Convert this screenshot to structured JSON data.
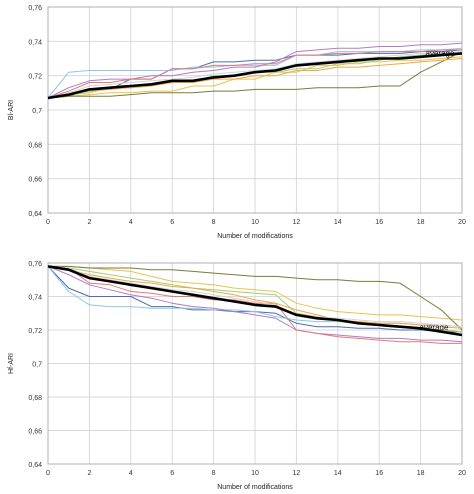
{
  "chart_data": [
    {
      "type": "line",
      "xlabel": "Number of modifications",
      "ylabel": "Bl-ARI",
      "xlim": [
        0,
        20
      ],
      "ylim": [
        0.64,
        0.76
      ],
      "x_ticks": [
        "0",
        "2",
        "4",
        "6",
        "8",
        "10",
        "12",
        "14",
        "16",
        "18",
        "20"
      ],
      "y_ticks": [
        "0,64",
        "0,66",
        "0,68",
        "0,7",
        "0,72",
        "0,74",
        "0,76"
      ],
      "grid": true,
      "x": [
        0,
        1,
        2,
        3,
        4,
        5,
        6,
        7,
        8,
        9,
        10,
        11,
        12,
        13,
        14,
        15,
        16,
        17,
        18,
        19,
        20
      ],
      "average_label": "average",
      "average": [
        0.707,
        0.709,
        0.712,
        0.713,
        0.714,
        0.715,
        0.717,
        0.717,
        0.719,
        0.72,
        0.722,
        0.723,
        0.726,
        0.727,
        0.728,
        0.729,
        0.73,
        0.73,
        0.731,
        0.732,
        0.733
      ],
      "series": [
        {
          "color": "#4a6fb0",
          "values": [
            0.707,
            0.708,
            0.712,
            0.712,
            0.718,
            0.718,
            0.724,
            0.724,
            0.728,
            0.728,
            0.729,
            0.729,
            0.732,
            0.732,
            0.732,
            0.733,
            0.733,
            0.733,
            0.734,
            0.734,
            0.735
          ]
        },
        {
          "color": "#8ec7e8",
          "values": [
            0.707,
            0.722,
            0.723,
            0.723,
            0.723,
            0.723,
            0.723,
            0.725,
            0.725,
            0.726,
            0.726,
            0.726,
            0.732,
            0.732,
            0.734,
            0.734,
            0.734,
            0.734,
            0.735,
            0.735,
            0.736
          ]
        },
        {
          "color": "#e8c44a",
          "values": [
            0.707,
            0.708,
            0.709,
            0.71,
            0.71,
            0.711,
            0.711,
            0.714,
            0.714,
            0.718,
            0.718,
            0.722,
            0.722,
            0.726,
            0.726,
            0.728,
            0.728,
            0.729,
            0.729,
            0.73,
            0.731
          ]
        },
        {
          "color": "#b07cc0",
          "values": [
            0.707,
            0.713,
            0.717,
            0.718,
            0.718,
            0.72,
            0.72,
            0.722,
            0.723,
            0.725,
            0.725,
            0.728,
            0.734,
            0.735,
            0.736,
            0.736,
            0.737,
            0.737,
            0.738,
            0.738,
            0.739
          ]
        },
        {
          "color": "#e07a7a",
          "values": [
            0.707,
            0.711,
            0.716,
            0.716,
            0.718,
            0.718,
            0.724,
            0.724,
            0.726,
            0.726,
            0.727,
            0.727,
            0.732,
            0.732,
            0.733,
            0.733,
            0.734,
            0.734,
            0.734,
            0.735,
            0.735
          ]
        },
        {
          "color": "#7a7a3a",
          "values": [
            0.707,
            0.708,
            0.708,
            0.708,
            0.709,
            0.71,
            0.71,
            0.71,
            0.711,
            0.711,
            0.712,
            0.712,
            0.712,
            0.713,
            0.713,
            0.713,
            0.714,
            0.714,
            0.722,
            0.728,
            0.734
          ]
        },
        {
          "color": "#9ad27a",
          "values": [
            0.707,
            0.709,
            0.71,
            0.713,
            0.713,
            0.715,
            0.716,
            0.716,
            0.72,
            0.72,
            0.722,
            0.722,
            0.724,
            0.724,
            0.727,
            0.727,
            0.729,
            0.731,
            0.732,
            0.733,
            0.734
          ]
        },
        {
          "color": "#f3a640",
          "values": [
            0.707,
            0.709,
            0.711,
            0.712,
            0.713,
            0.714,
            0.716,
            0.716,
            0.718,
            0.718,
            0.72,
            0.72,
            0.723,
            0.723,
            0.725,
            0.725,
            0.726,
            0.727,
            0.728,
            0.729,
            0.73
          ]
        },
        {
          "color": "#d4d4d4",
          "values": [
            0.707,
            0.71,
            0.714,
            0.715,
            0.716,
            0.717,
            0.718,
            0.719,
            0.721,
            0.722,
            0.723,
            0.724,
            0.727,
            0.728,
            0.729,
            0.73,
            0.731,
            0.732,
            0.733,
            0.733,
            0.734
          ]
        }
      ]
    },
    {
      "type": "line",
      "xlabel": "Number of modifications",
      "ylabel": "Hf-ARI",
      "xlim": [
        0,
        20
      ],
      "ylim": [
        0.64,
        0.76
      ],
      "x_ticks": [
        "0",
        "2",
        "4",
        "6",
        "8",
        "10",
        "12",
        "14",
        "16",
        "18",
        "20"
      ],
      "y_ticks": [
        "0,64",
        "0,66",
        "0,68",
        "0,7",
        "0,72",
        "0,74",
        "0,76"
      ],
      "grid": true,
      "x": [
        0,
        1,
        2,
        3,
        4,
        5,
        6,
        7,
        8,
        9,
        10,
        11,
        12,
        13,
        14,
        15,
        16,
        17,
        18,
        19,
        20
      ],
      "average_label": "average",
      "average": [
        0.758,
        0.756,
        0.751,
        0.749,
        0.747,
        0.745,
        0.743,
        0.741,
        0.739,
        0.737,
        0.735,
        0.734,
        0.729,
        0.727,
        0.726,
        0.724,
        0.723,
        0.722,
        0.721,
        0.719,
        0.717
      ],
      "series": [
        {
          "color": "#4a6fb0",
          "values": [
            0.758,
            0.745,
            0.74,
            0.74,
            0.74,
            0.734,
            0.734,
            0.732,
            0.732,
            0.731,
            0.731,
            0.73,
            0.724,
            0.722,
            0.722,
            0.721,
            0.721,
            0.72,
            0.72,
            0.719,
            0.719
          ]
        },
        {
          "color": "#8ec7e8",
          "values": [
            0.758,
            0.743,
            0.735,
            0.734,
            0.734,
            0.733,
            0.733,
            0.733,
            0.732,
            0.732,
            0.731,
            0.728,
            0.726,
            0.725,
            0.725,
            0.725,
            0.724,
            0.724,
            0.723,
            0.723,
            0.722
          ]
        },
        {
          "color": "#e8c44a",
          "values": [
            0.758,
            0.758,
            0.757,
            0.756,
            0.755,
            0.752,
            0.749,
            0.748,
            0.747,
            0.745,
            0.744,
            0.743,
            0.736,
            0.733,
            0.731,
            0.73,
            0.729,
            0.729,
            0.728,
            0.727,
            0.726
          ]
        },
        {
          "color": "#b07cc0",
          "values": [
            0.758,
            0.753,
            0.747,
            0.744,
            0.741,
            0.739,
            0.736,
            0.734,
            0.733,
            0.731,
            0.729,
            0.727,
            0.72,
            0.718,
            0.717,
            0.716,
            0.715,
            0.715,
            0.714,
            0.714,
            0.713
          ]
        },
        {
          "color": "#e07a7a",
          "values": [
            0.758,
            0.757,
            0.748,
            0.747,
            0.743,
            0.742,
            0.74,
            0.74,
            0.738,
            0.738,
            0.736,
            0.736,
            0.72,
            0.718,
            0.716,
            0.715,
            0.714,
            0.713,
            0.713,
            0.712,
            0.712
          ]
        },
        {
          "color": "#7a7a3a",
          "values": [
            0.758,
            0.758,
            0.757,
            0.757,
            0.757,
            0.756,
            0.756,
            0.755,
            0.754,
            0.753,
            0.752,
            0.752,
            0.751,
            0.75,
            0.75,
            0.749,
            0.749,
            0.748,
            0.74,
            0.732,
            0.72
          ]
        },
        {
          "color": "#9ad27a",
          "values": [
            0.758,
            0.757,
            0.755,
            0.753,
            0.751,
            0.749,
            0.747,
            0.745,
            0.744,
            0.743,
            0.742,
            0.741,
            0.73,
            0.728,
            0.725,
            0.724,
            0.723,
            0.722,
            0.721,
            0.72,
            0.719
          ]
        },
        {
          "color": "#f3a640",
          "values": [
            0.758,
            0.756,
            0.753,
            0.751,
            0.749,
            0.748,
            0.746,
            0.745,
            0.743,
            0.741,
            0.738,
            0.736,
            0.732,
            0.729,
            0.726,
            0.725,
            0.724,
            0.724,
            0.723,
            0.722,
            0.721
          ]
        },
        {
          "color": "#d4d4d4",
          "values": [
            0.758,
            0.757,
            0.752,
            0.75,
            0.748,
            0.746,
            0.744,
            0.743,
            0.741,
            0.739,
            0.737,
            0.735,
            0.729,
            0.728,
            0.727,
            0.726,
            0.725,
            0.725,
            0.724,
            0.723,
            0.722
          ]
        }
      ]
    }
  ]
}
